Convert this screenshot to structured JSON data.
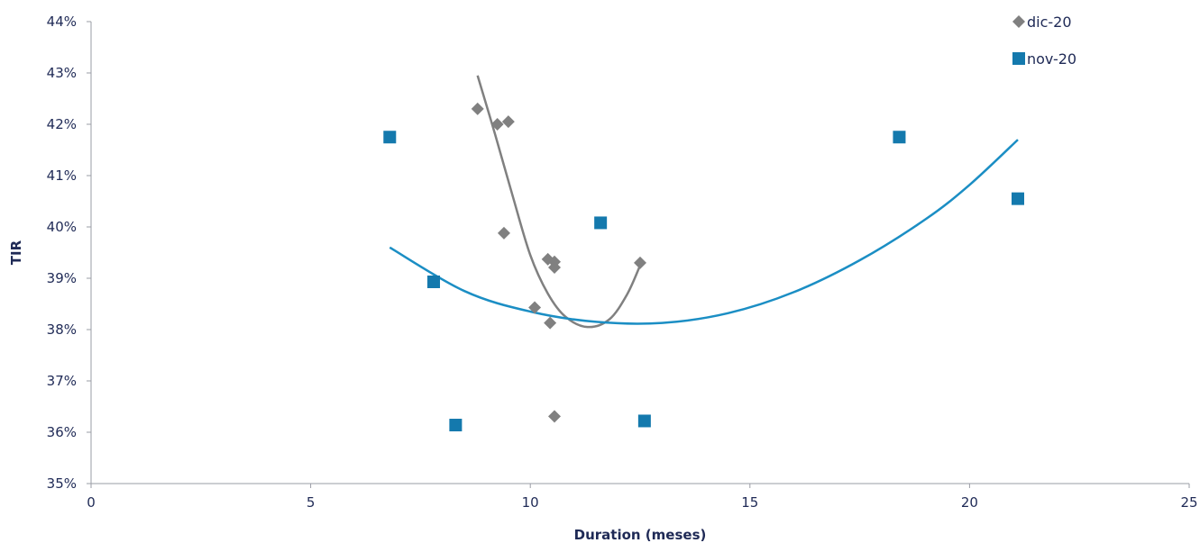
{
  "chart_data": {
    "type": "scatter",
    "title": "",
    "xlabel": "Duration (meses)",
    "ylabel": "TIR",
    "xlim": [
      0,
      25
    ],
    "ylim": [
      0.35,
      0.44
    ],
    "x_ticks": [
      0,
      5,
      10,
      15,
      20,
      25
    ],
    "y_ticks": [
      0.35,
      0.36,
      0.37,
      0.38,
      0.39,
      0.4,
      0.41,
      0.42,
      0.43,
      0.44
    ],
    "x_tick_labels": [
      "0",
      "5",
      "10",
      "15",
      "20",
      "25"
    ],
    "y_tick_labels": [
      "35%",
      "36%",
      "37%",
      "38%",
      "39%",
      "40%",
      "41%",
      "42%",
      "43%",
      "44%"
    ],
    "grid": false,
    "legend_position": "top-right",
    "series": [
      {
        "name": "dic-20",
        "marker": "diamond",
        "color": "#808080",
        "points": [
          [
            8.8,
            0.423
          ],
          [
            9.25,
            0.42
          ],
          [
            9.5,
            0.4205
          ],
          [
            9.4,
            0.3988
          ],
          [
            10.1,
            0.3843
          ],
          [
            10.4,
            0.3937
          ],
          [
            10.55,
            0.3932
          ],
          [
            10.55,
            0.3921
          ],
          [
            10.45,
            0.3813
          ],
          [
            10.55,
            0.3631
          ],
          [
            12.5,
            0.393
          ]
        ],
        "trendline": {
          "type": "polynomial-2",
          "color": "#808080",
          "points": [
            [
              8.8,
              0.4295
            ],
            [
              9.2,
              0.418
            ],
            [
              9.6,
              0.406
            ],
            [
              10.0,
              0.3945
            ],
            [
              10.4,
              0.387
            ],
            [
              10.8,
              0.3825
            ],
            [
              11.3,
              0.3805
            ],
            [
              11.8,
              0.382
            ],
            [
              12.2,
              0.3868
            ],
            [
              12.5,
              0.3925
            ]
          ]
        }
      },
      {
        "name": "nov-20",
        "marker": "square",
        "color": "#1479ad",
        "points": [
          [
            6.8,
            0.4175
          ],
          [
            7.8,
            0.3893
          ],
          [
            8.3,
            0.3614
          ],
          [
            11.6,
            0.4008
          ],
          [
            12.6,
            0.3622
          ],
          [
            18.4,
            0.4175
          ],
          [
            21.1,
            0.4055
          ]
        ],
        "trendline": {
          "type": "polynomial-2",
          "color": "#1b8ec4",
          "points": [
            [
              6.8,
              0.396
            ],
            [
              8.5,
              0.3875
            ],
            [
              10.0,
              0.3835
            ],
            [
              11.5,
              0.3815
            ],
            [
              13.0,
              0.3813
            ],
            [
              14.5,
              0.3832
            ],
            [
              16.0,
              0.3873
            ],
            [
              17.5,
              0.3935
            ],
            [
              19.0,
              0.4015
            ],
            [
              20.0,
              0.4082
            ],
            [
              21.1,
              0.417
            ]
          ]
        }
      }
    ]
  }
}
